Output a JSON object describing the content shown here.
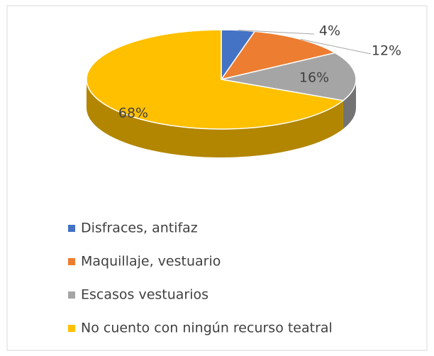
{
  "chart_data": {
    "type": "pie",
    "categories": [
      "Disfraces, antifaz",
      "Maquillaje, vestuario",
      "Escasos vestuarios",
      "No cuento con ningún recurso teatral"
    ],
    "values": [
      4,
      12,
      16,
      68
    ],
    "value_labels": [
      "4%",
      "12%",
      "16%",
      "68%"
    ],
    "colors": [
      "#4472c4",
      "#ed7d31",
      "#a5a5a5",
      "#ffc000"
    ],
    "legend": "bottom"
  }
}
